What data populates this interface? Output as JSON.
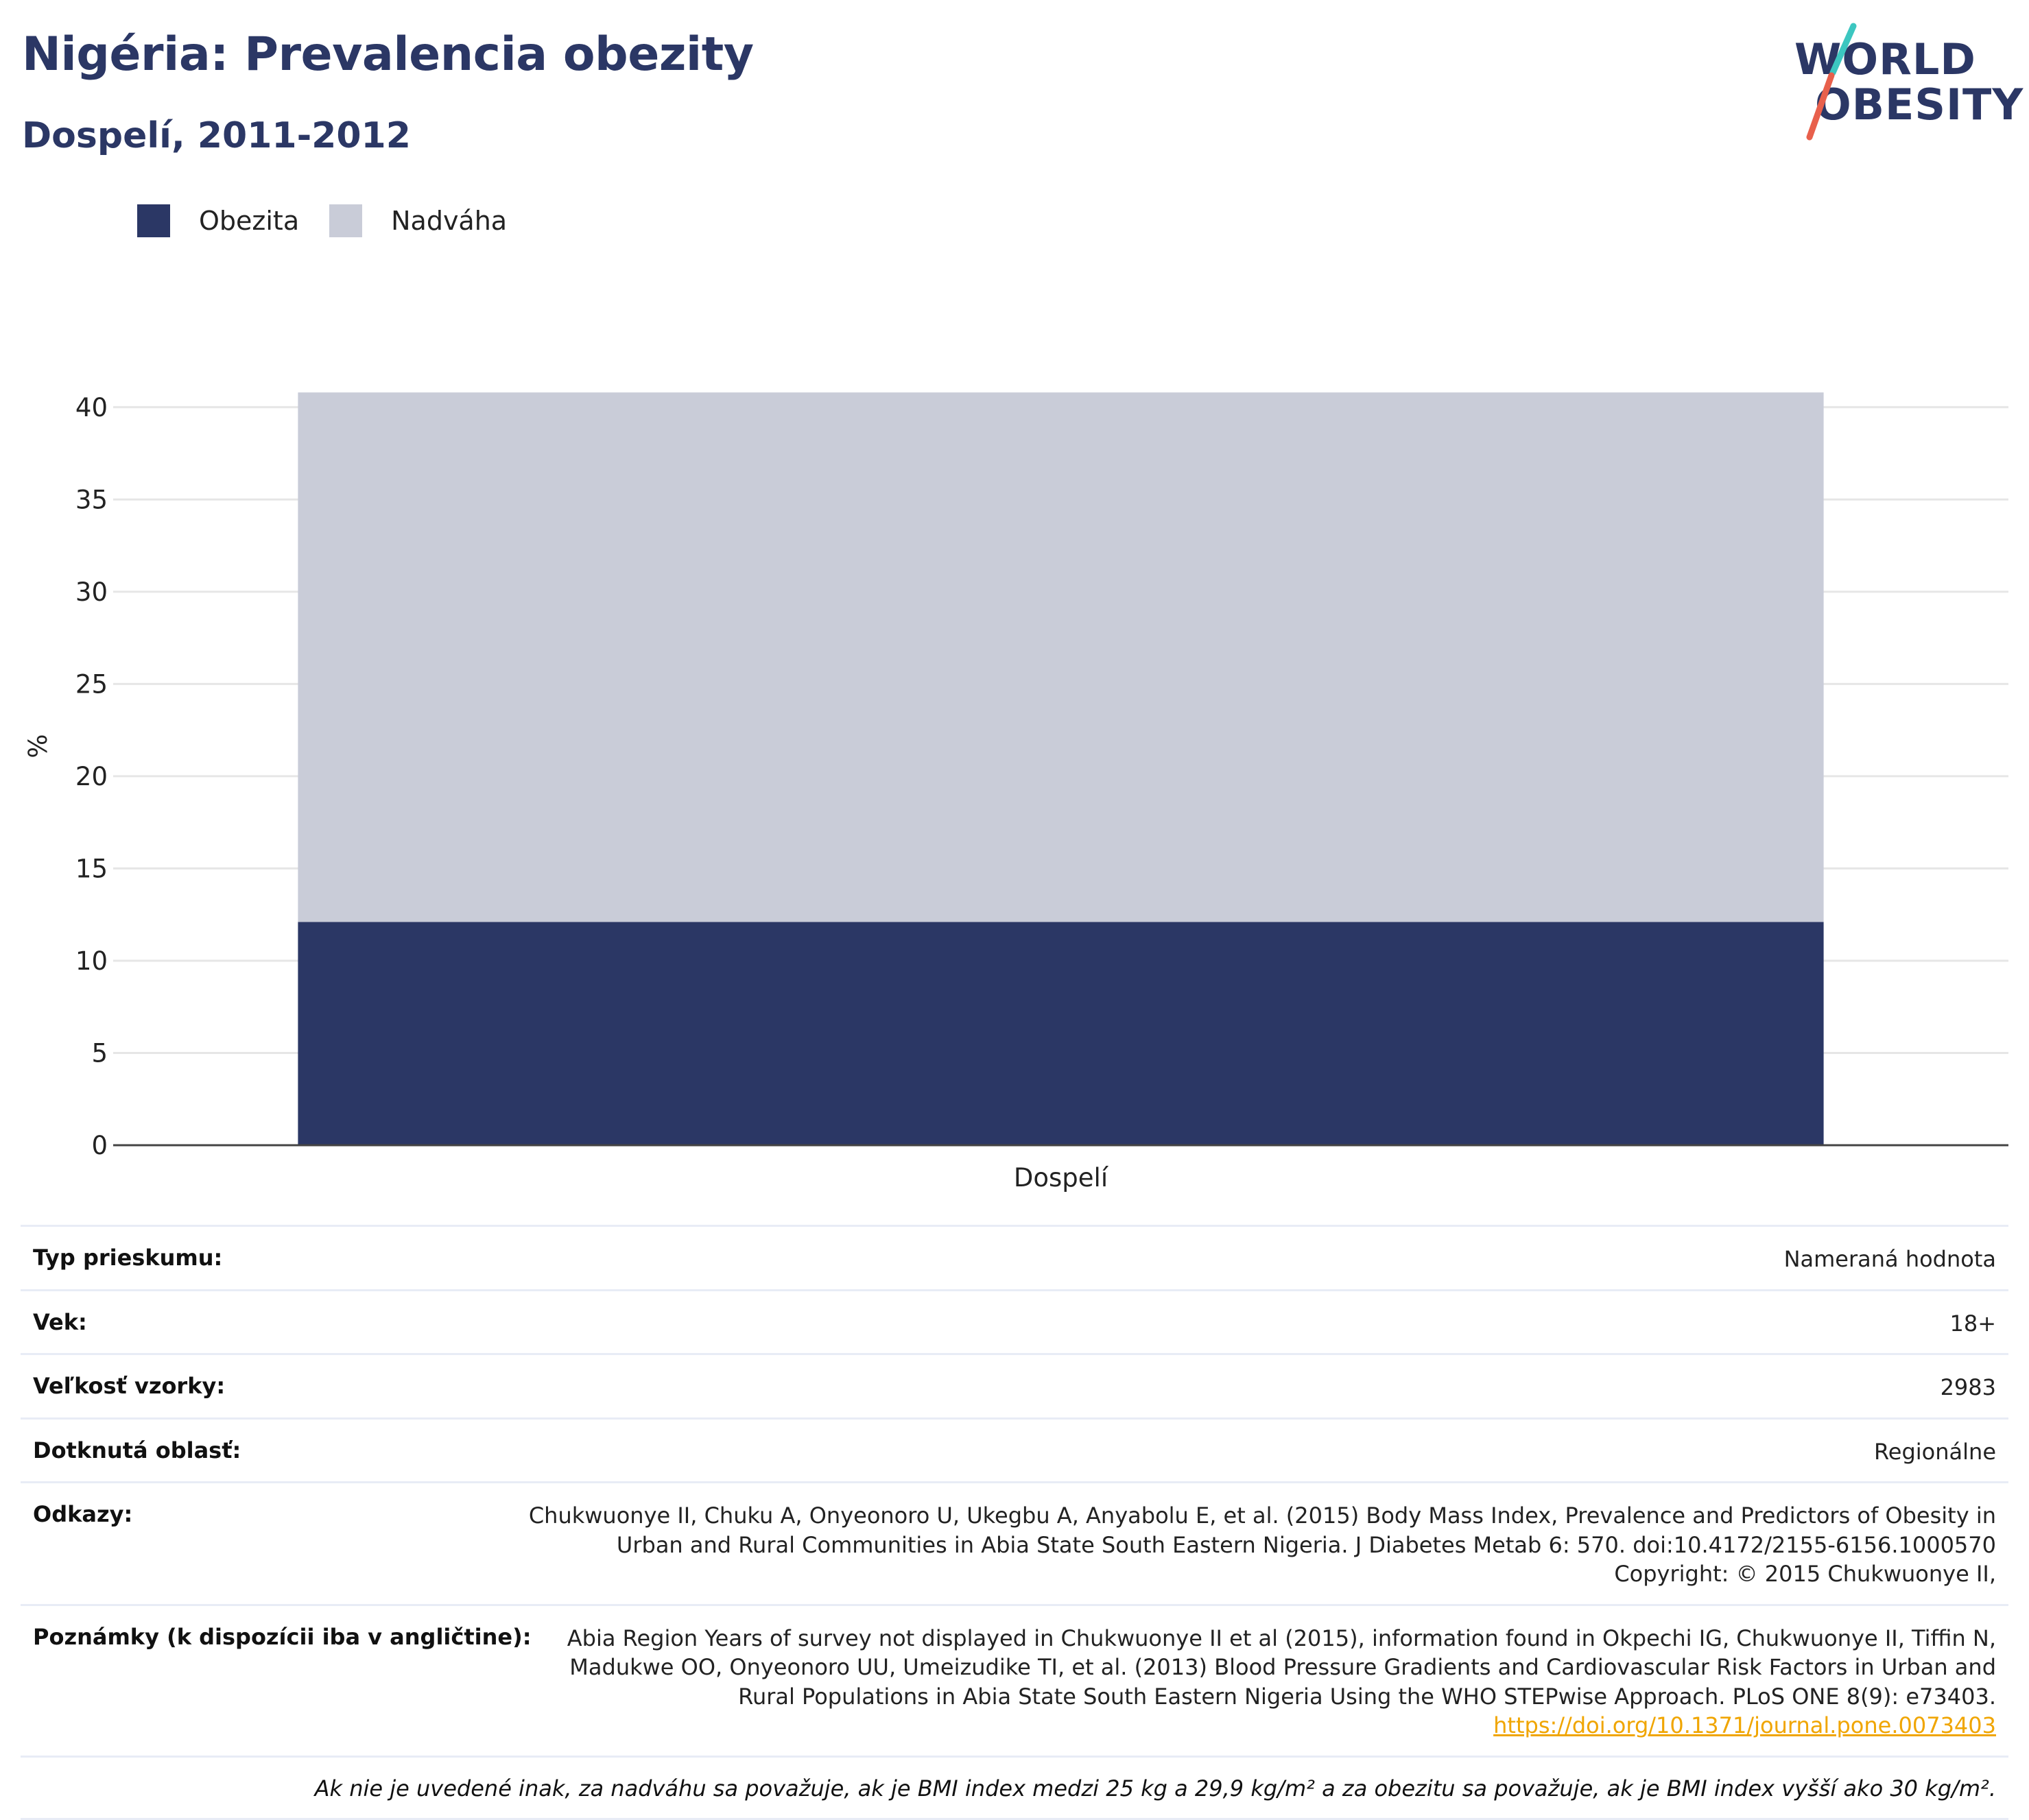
{
  "header": {
    "title": "Nigéria: Prevalencia obezity",
    "subtitle": "Dospelí, 2011-2012"
  },
  "logo": {
    "line1": "WORLD",
    "line2": "OBESITY",
    "colors": {
      "text": "#2b3765",
      "slash_top": "#3cc6c0",
      "slash_bottom": "#e8604c"
    }
  },
  "legend": [
    {
      "label": "Obezita",
      "color": "#2b3765"
    },
    {
      "label": "Nadváha",
      "color": "#c9ccd8"
    }
  ],
  "chart_data": {
    "type": "bar",
    "stacked": true,
    "categories": [
      "Dospelí"
    ],
    "series": [
      {
        "name": "Obezita",
        "values": [
          12.1
        ],
        "color": "#2b3765"
      },
      {
        "name": "Nadváha",
        "values": [
          28.7
        ],
        "color": "#c9ccd8"
      }
    ],
    "ylabel": "%",
    "ylim": [
      0,
      42
    ],
    "yticks": [
      0,
      5,
      10,
      15,
      20,
      25,
      30,
      35,
      40
    ],
    "grid": true,
    "legend_position": "top-left"
  },
  "info": {
    "rows": [
      {
        "label": "Typ prieskumu:",
        "value": "Nameraná hodnota"
      },
      {
        "label": "Vek:",
        "value": "18+"
      },
      {
        "label": "Veľkosť vzorky:",
        "value": "2983"
      },
      {
        "label": "Dotknutá oblasť:",
        "value": "Regionálne"
      },
      {
        "label": "Odkazy:",
        "value": "Chukwuonye II, Chuku A, Onyeonoro U, Ukegbu A, Anyabolu E, et al. (2015) Body Mass Index, Prevalence and Predictors of Obesity in Urban and Rural Communities in Abia State South Eastern Nigeria. J Diabetes Metab 6: 570. doi:10.4172/2155-6156.1000570 Copyright: © 2015 Chukwuonye II,"
      }
    ],
    "notes": {
      "label": "Poznámky (k dispozícii iba v angličtine):",
      "value": "Abia Region Years of survey not displayed in Chukwuonye II et al (2015), information found in Okpechi IG, Chukwuonye II, Tiffin N, Madukwe OO, Onyeonoro UU, Umeizudike TI, et al. (2013) Blood Pressure Gradients and Cardiovascular Risk Factors in Urban and Rural Populations in Abia State South Eastern Nigeria Using the WHO STEPwise Approach. PLoS ONE 8(9): e73403.",
      "link": "https://doi.org/10.1371/journal.pone.0073403"
    },
    "footnote": "Ak nie je uvedené inak, za nadváhu sa považuje, ak je BMI index medzi 25 kg a 29,9 kg/m² a za obezitu sa považuje, ak je BMI index vyšší ako 30 kg/m²."
  }
}
